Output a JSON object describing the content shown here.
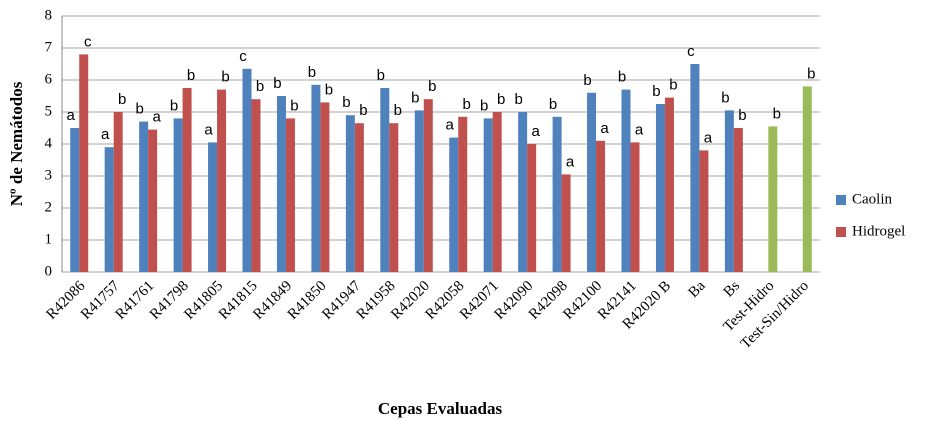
{
  "chart_data": {
    "type": "bar",
    "x_label": "Cepas Evaluadas",
    "y_label": "Nº de Nemátodos",
    "categories": [
      "R42086",
      "R41757",
      "R41761",
      "R41798",
      "R41805",
      "R41815",
      "R41849",
      "R41850",
      "R41947",
      "R41958",
      "R42020",
      "R42058",
      "R42071",
      "R42090",
      "R42098",
      "R42100",
      "R42141",
      "R42020 B",
      "Ba",
      "Bs",
      "Test-Hidro",
      "Test-Sin/Hidro"
    ],
    "series": [
      {
        "name": "Caolin",
        "color": "#4f81bd",
        "values": [
          4.5,
          3.9,
          4.7,
          4.8,
          4.05,
          6.35,
          5.5,
          5.85,
          4.9,
          5.75,
          5.05,
          4.2,
          4.8,
          5.0,
          4.85,
          5.6,
          5.7,
          5.25,
          6.5,
          5.05,
          null,
          null
        ],
        "letters": [
          "a",
          "a",
          "b",
          "b",
          "a",
          "c",
          "b",
          "b",
          "b",
          "b",
          "b",
          "a",
          "b",
          "b",
          "b",
          "b",
          "b",
          "b",
          "c",
          "b",
          null,
          null
        ]
      },
      {
        "name": "Hidrogel",
        "color": "#c0504d",
        "values": [
          6.8,
          5.0,
          4.45,
          5.75,
          5.7,
          5.4,
          4.8,
          5.3,
          4.65,
          4.65,
          5.4,
          4.85,
          5.0,
          4.0,
          3.05,
          4.1,
          4.05,
          5.45,
          3.8,
          4.5,
          null,
          null
        ],
        "letters": [
          "c",
          "b",
          "a",
          "b",
          "b",
          "b",
          "b",
          "b",
          "b",
          "b",
          "b",
          "b",
          "b",
          "a",
          "a",
          "a",
          "a",
          "b",
          "a",
          "b",
          null,
          null
        ]
      },
      {
        "color": "#9bbb59",
        "values": [
          null,
          null,
          null,
          null,
          null,
          null,
          null,
          null,
          null,
          null,
          null,
          null,
          null,
          null,
          null,
          null,
          null,
          null,
          null,
          null,
          4.55,
          5.8
        ],
        "letters": [
          null,
          null,
          null,
          null,
          null,
          null,
          null,
          null,
          null,
          null,
          null,
          null,
          null,
          null,
          null,
          null,
          null,
          null,
          null,
          null,
          "b",
          "b"
        ]
      }
    ],
    "ylim": [
      0,
      8
    ],
    "yticks": [
      0,
      1,
      2,
      3,
      4,
      5,
      6,
      7,
      8
    ],
    "grid": true,
    "legend": "right"
  }
}
